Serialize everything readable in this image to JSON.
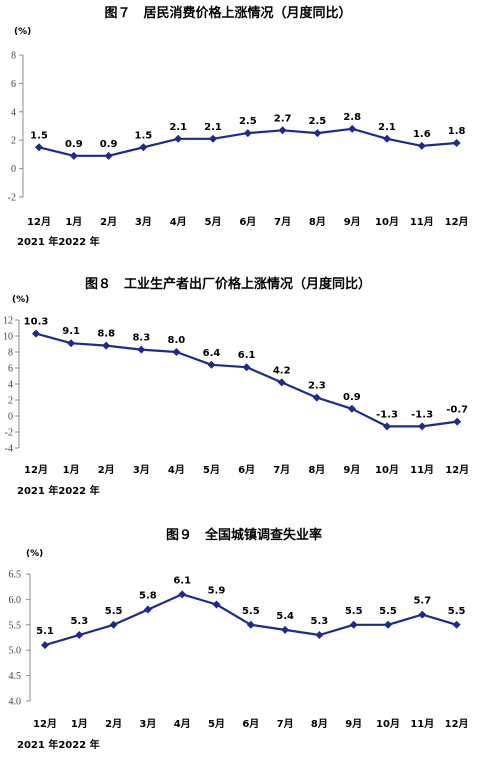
{
  "colors": {
    "series": "#1f2a8c",
    "axis": "#8c8c8c"
  },
  "chart_data": [
    {
      "type": "line",
      "title": "图７　居民消费价格上涨情况（月度同比）",
      "unit": "(%)",
      "categories": [
        "12月",
        "1月",
        "2月",
        "3月",
        "4月",
        "5月",
        "6月",
        "7月",
        "8月",
        "9月",
        "10月",
        "11月",
        "12月"
      ],
      "years": "2021 年2022 年",
      "series": [
        {
          "values": [
            1.5,
            0.9,
            0.9,
            1.5,
            2.1,
            2.1,
            2.5,
            2.7,
            2.5,
            2.8,
            2.1,
            1.6,
            1.8
          ]
        }
      ],
      "labels": [
        "1.5",
        "0.9",
        "0.9",
        "1.5",
        "2.1",
        "2.1",
        "2.5",
        "2.7",
        "2.5",
        "2.8",
        "2.1",
        "1.6",
        "1.8"
      ],
      "ylim": [
        -2,
        8
      ],
      "yticks": [
        -2,
        0,
        2,
        4,
        6,
        8
      ],
      "ytick_labels": [
        "-2",
        "0",
        "2",
        "4",
        "6",
        "8"
      ]
    },
    {
      "type": "line",
      "title": "图８　工业生产者出厂价格上涨情况（月度同比）",
      "unit": "(%)",
      "categories": [
        "12月",
        "1月",
        "2月",
        "3月",
        "4月",
        "5月",
        "6月",
        "7月",
        "8月",
        "9月",
        "10月",
        "11月",
        "12月"
      ],
      "years": "2021 年2022 年",
      "series": [
        {
          "values": [
            10.3,
            9.1,
            8.8,
            8.3,
            8.0,
            6.4,
            6.1,
            4.2,
            2.3,
            0.9,
            -1.3,
            -1.3,
            -0.7
          ]
        }
      ],
      "labels": [
        "10.3",
        "9.1",
        "8.8",
        "8.3",
        "8.0",
        "6.4",
        "6.1",
        "4.2",
        "2.3",
        "0.9",
        "-1.3",
        "-1.3",
        "-0.7"
      ],
      "ylim": [
        -4,
        12
      ],
      "yticks": [
        -4,
        -2,
        0,
        2,
        4,
        6,
        8,
        10,
        12
      ],
      "ytick_labels": [
        "-4",
        "-2",
        "0",
        "2",
        "4",
        "6",
        "8",
        "10",
        "12"
      ]
    },
    {
      "type": "line",
      "title": "图９　全国城镇调查失业率",
      "unit": "(%)",
      "categories": [
        "12月",
        "1月",
        "2月",
        "3月",
        "4月",
        "5月",
        "6月",
        "7月",
        "8月",
        "9月",
        "10月",
        "11月",
        "12月"
      ],
      "years": "2021 年2022 年",
      "series": [
        {
          "values": [
            5.1,
            5.3,
            5.5,
            5.8,
            6.1,
            5.9,
            5.5,
            5.4,
            5.3,
            5.5,
            5.5,
            5.7,
            5.5
          ]
        }
      ],
      "labels": [
        "5.1",
        "5.3",
        "5.5",
        "5.8",
        "6.1",
        "5.9",
        "5.5",
        "5.4",
        "5.3",
        "5.5",
        "5.5",
        "5.7",
        "5.5"
      ],
      "ylim": [
        4.0,
        6.5
      ],
      "yticks": [
        4.0,
        4.5,
        5.0,
        5.5,
        6.0,
        6.5
      ],
      "ytick_labels": [
        "4.0",
        "4.5",
        "5.0",
        "5.5",
        "6.0",
        "6.5"
      ]
    }
  ]
}
